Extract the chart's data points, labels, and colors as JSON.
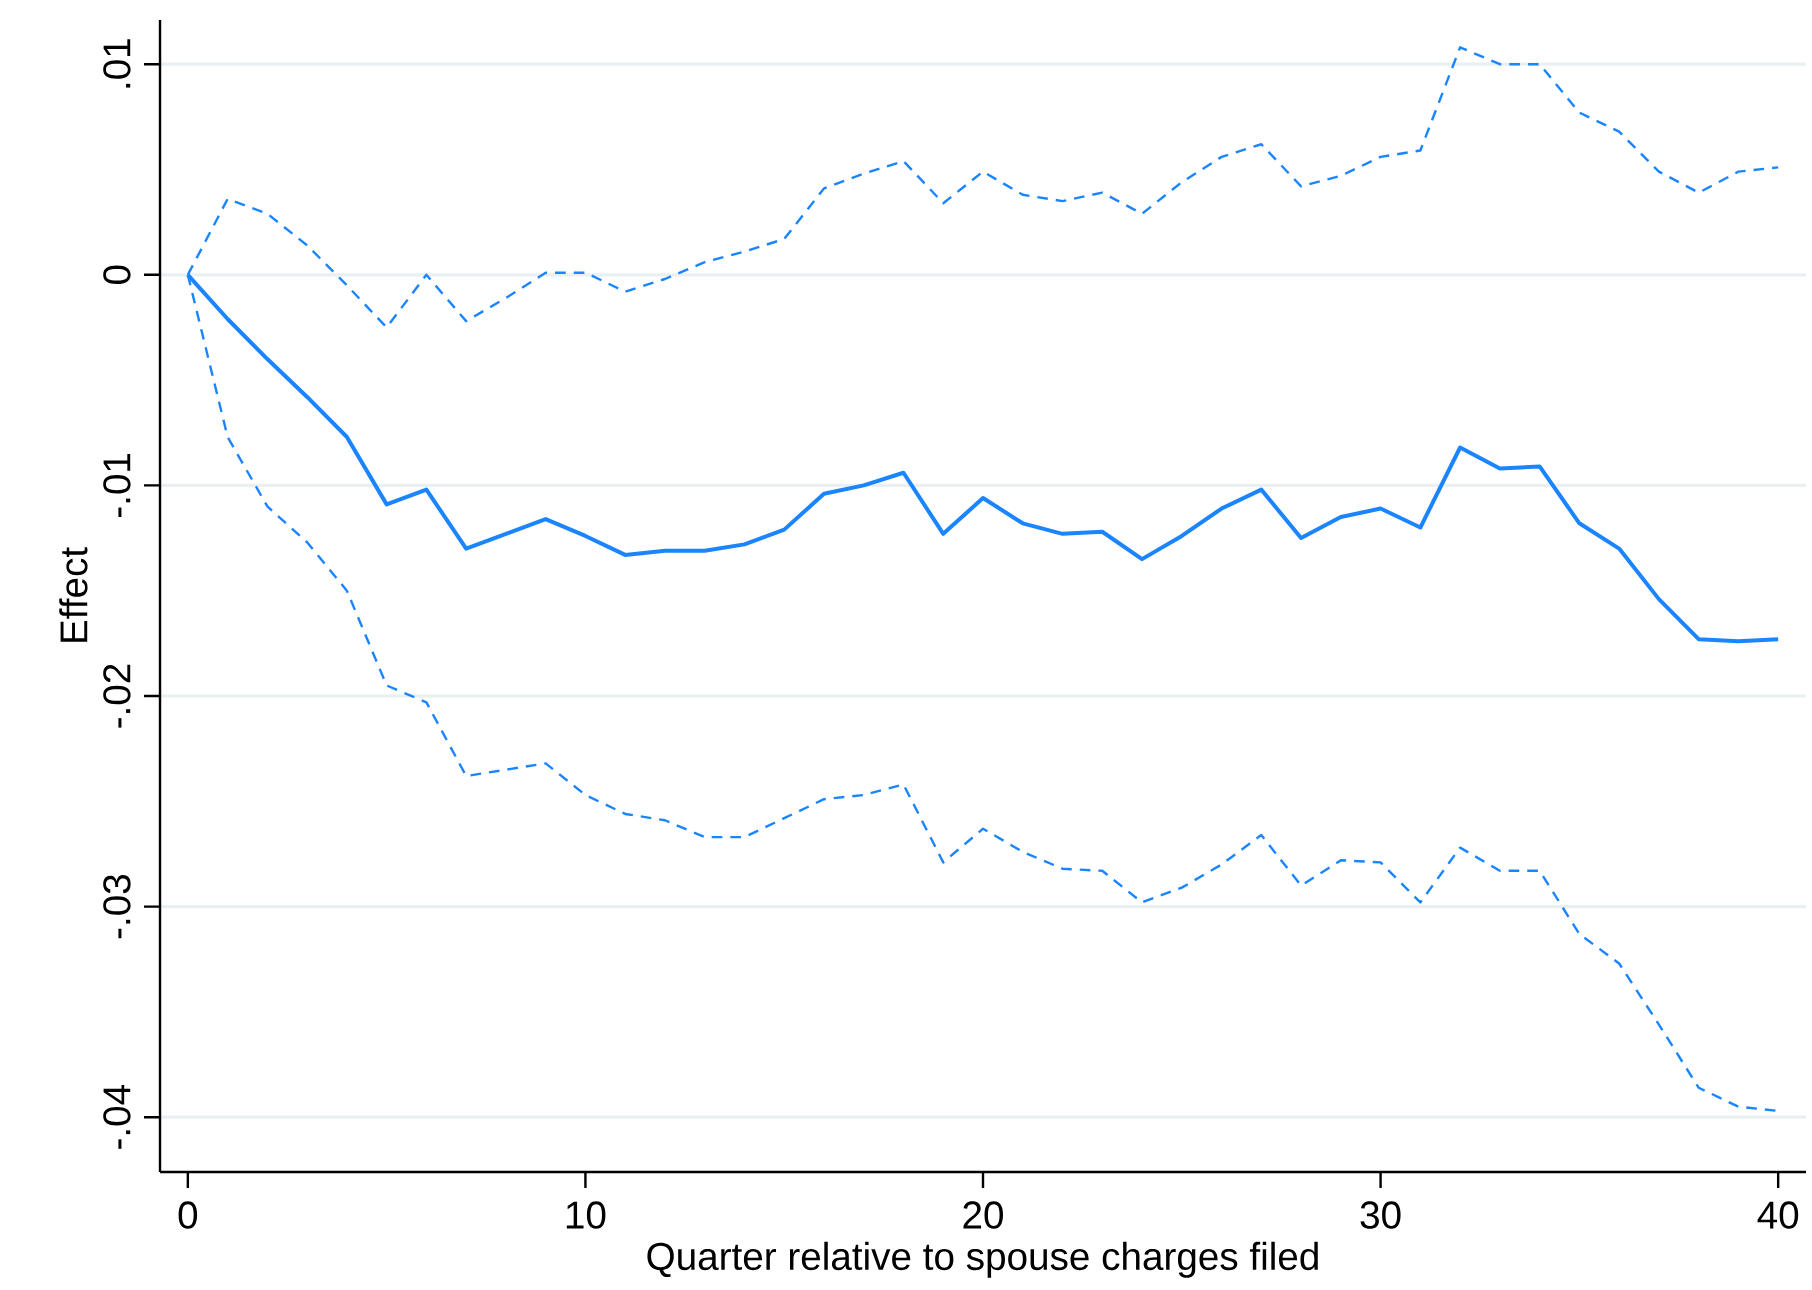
{
  "chart_data": {
    "type": "line",
    "xlabel": "Quarter relative to spouse charges filed",
    "ylabel": "Effect",
    "x": [
      0,
      1,
      2,
      3,
      4,
      5,
      6,
      7,
      8,
      9,
      10,
      11,
      12,
      13,
      14,
      15,
      16,
      17,
      18,
      19,
      20,
      21,
      22,
      23,
      24,
      25,
      26,
      27,
      28,
      29,
      30,
      31,
      32,
      33,
      34,
      35,
      36,
      37,
      38,
      39,
      40
    ],
    "series": [
      {
        "color": "#1a85ff",
        "line_style": "solid",
        "values": [
          0,
          -0.0021,
          -0.004,
          -0.0058,
          -0.0077,
          -0.0109,
          -0.0102,
          -0.013,
          -0.0123,
          -0.0116,
          -0.0124,
          -0.0133,
          -0.0131,
          -0.0131,
          -0.0128,
          -0.0121,
          -0.0104,
          -0.01,
          -0.0094,
          -0.0123,
          -0.0106,
          -0.0118,
          -0.0123,
          -0.0122,
          -0.0135,
          -0.0124,
          -0.0111,
          -0.0102,
          -0.0125,
          -0.0115,
          -0.0111,
          -0.012,
          -0.0082,
          -0.0092,
          -0.0091,
          -0.0118,
          -0.013,
          -0.0154,
          -0.0173,
          -0.0174,
          -0.0173
        ]
      },
      {
        "color": "#1a85ff",
        "line_style": "dashed",
        "values": [
          0,
          0.0036,
          0.0029,
          0.0014,
          -0.0005,
          -0.0025,
          0,
          -0.0022,
          -0.0011,
          0.0001,
          0.0001,
          -0.0008,
          -0.0002,
          0.0006,
          0.0011,
          0.0017,
          0.0041,
          0.0048,
          0.0054,
          0.0034,
          0.0049,
          0.0038,
          0.0035,
          0.0039,
          0.0029,
          0.0044,
          0.0056,
          0.0062,
          0.0042,
          0.0047,
          0.0056,
          0.0059,
          0.0108,
          0.01,
          0.01,
          0.0077,
          0.0068,
          0.0049,
          0.0039,
          0.0049,
          0.0051
        ]
      },
      {
        "color": "#1a85ff",
        "line_style": "dashed",
        "values": [
          0,
          -0.0077,
          -0.011,
          -0.0127,
          -0.015,
          -0.0195,
          -0.0203,
          -0.0238,
          -0.0235,
          -0.0232,
          -0.0247,
          -0.0256,
          -0.0259,
          -0.0267,
          -0.0267,
          -0.0258,
          -0.0249,
          -0.0247,
          -0.0242,
          -0.0279,
          -0.0263,
          -0.0274,
          -0.0282,
          -0.0283,
          -0.0298,
          -0.0291,
          -0.028,
          -0.0266,
          -0.029,
          -0.0278,
          -0.0279,
          -0.0298,
          -0.0272,
          -0.0283,
          -0.0283,
          -0.0313,
          -0.0327,
          -0.0356,
          -0.0386,
          -0.0395,
          -0.0397
        ]
      }
    ],
    "xlim": [
      -0.7,
      40.7
    ],
    "xticks": [
      0,
      10,
      20,
      30,
      40
    ],
    "ylim": [
      -0.0426,
      0.0121
    ],
    "yticks": [
      {
        "value": -0.04,
        "label": "-.04"
      },
      {
        "value": -0.03,
        "label": "-.03"
      },
      {
        "value": -0.02,
        "label": "-.02"
      },
      {
        "value": -0.01,
        "label": "-.01"
      },
      0,
      {
        "value": 0.01,
        "label": ".01"
      }
    ],
    "grid": "y",
    "marker": "none"
  }
}
